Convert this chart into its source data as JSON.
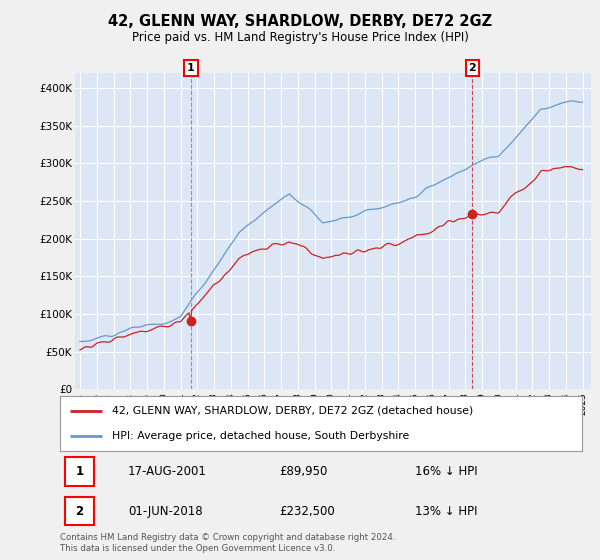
{
  "title": "42, GLENN WAY, SHARDLOW, DERBY, DE72 2GZ",
  "subtitle": "Price paid vs. HM Land Registry's House Price Index (HPI)",
  "ylim": [
    0,
    420000
  ],
  "yticks": [
    0,
    50000,
    100000,
    150000,
    200000,
    250000,
    300000,
    350000,
    400000
  ],
  "ytick_labels": [
    "£0",
    "£50K",
    "£100K",
    "£150K",
    "£200K",
    "£250K",
    "£300K",
    "£350K",
    "£400K"
  ],
  "hpi_color": "#6699cc",
  "price_color": "#cc2222",
  "marker1_price": 89950,
  "marker1_date": "17-AUG-2001",
  "marker1_pct": "16% ↓ HPI",
  "marker2_price": 232500,
  "marker2_date": "01-JUN-2018",
  "marker2_pct": "13% ↓ HPI",
  "legend_line1": "42, GLENN WAY, SHARDLOW, DERBY, DE72 2GZ (detached house)",
  "legend_line2": "HPI: Average price, detached house, South Derbyshire",
  "footer": "Contains HM Land Registry data © Crown copyright and database right 2024.\nThis data is licensed under the Open Government Licence v3.0.",
  "fig_bg": "#f0f0f0",
  "plot_bg": "#dce6f5"
}
